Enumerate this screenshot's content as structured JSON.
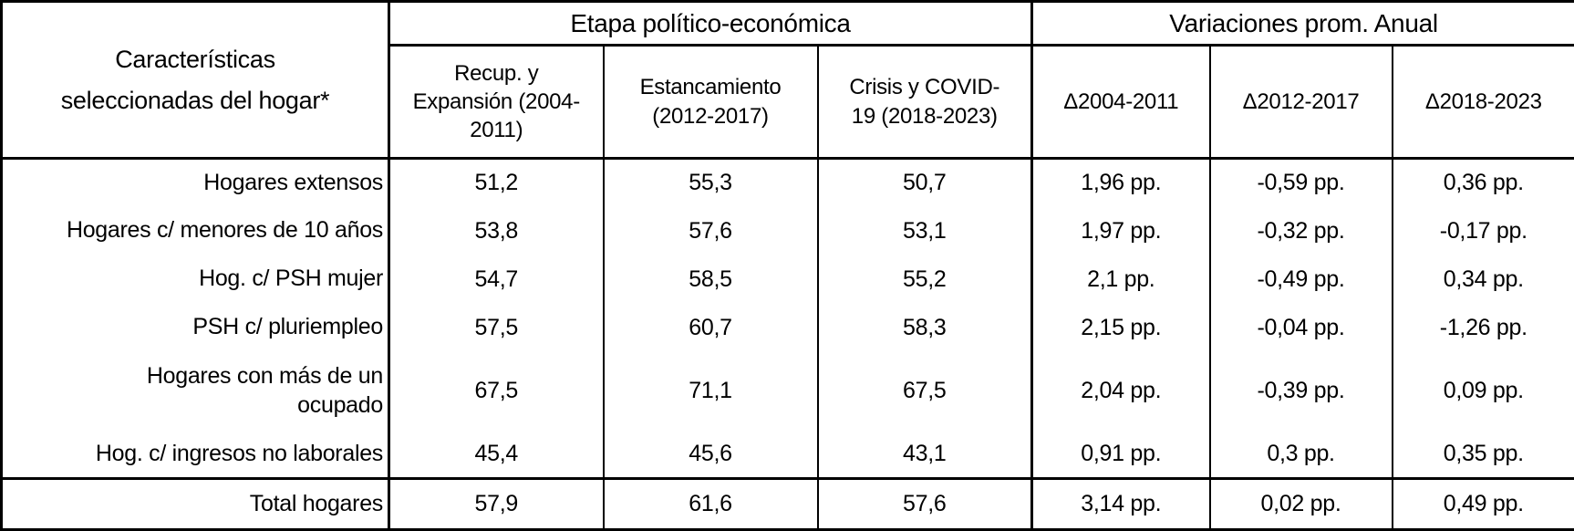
{
  "colors": {
    "background": "#ffffff",
    "text": "#000000",
    "border": "#000000"
  },
  "table": {
    "corner_header": "Características\nseleccionadas del hogar*",
    "groups": [
      {
        "label": "Etapa político-económica",
        "columns": [
          "Recup. y\nExpansión (2004-\n2011)",
          "Estancamiento\n(2012-2017)",
          "Crisis y COVID-\n19 (2018-2023)"
        ]
      },
      {
        "label": "Variaciones prom. Anual",
        "columns": [
          "Δ2004-2011",
          "Δ2012-2017",
          "Δ2018-2023"
        ]
      }
    ],
    "rows": [
      {
        "label": "Hogares extensos",
        "values": [
          "51,2",
          "55,3",
          "50,7",
          "1,96 pp.",
          "-0,59 pp.",
          "0,36 pp."
        ]
      },
      {
        "label": "Hogares c/ menores de 10 años",
        "values": [
          "53,8",
          "57,6",
          "53,1",
          "1,97 pp.",
          "-0,32 pp.",
          "-0,17 pp."
        ]
      },
      {
        "label": "Hog. c/ PSH mujer",
        "values": [
          "54,7",
          "58,5",
          "55,2",
          "2,1 pp.",
          "-0,49 pp.",
          "0,34 pp."
        ]
      },
      {
        "label": "PSH c/ pluriempleo",
        "values": [
          "57,5",
          "60,7",
          "58,3",
          "2,15 pp.",
          "-0,04 pp.",
          "-1,26 pp."
        ]
      },
      {
        "label": "Hogares con más de un\nocupado",
        "values": [
          "67,5",
          "71,1",
          "67,5",
          "2,04 pp.",
          "-0,39 pp.",
          "0,09 pp."
        ]
      },
      {
        "label": "Hog. c/ ingresos no laborales",
        "values": [
          "45,4",
          "45,6",
          "43,1",
          "0,91 pp.",
          "0,3 pp.",
          "0,35 pp."
        ]
      }
    ],
    "total_row": {
      "label": "Total hogares",
      "values": [
        "57,9",
        "61,6",
        "57,6",
        "3,14 pp.",
        "0,02 pp.",
        "0,49 pp."
      ]
    }
  },
  "chart_data": {
    "type": "table",
    "title": "",
    "corner_header": "Características seleccionadas del hogar*",
    "column_groups": [
      {
        "label": "Etapa político-económica",
        "columns": [
          "Recup. y Expansión (2004-2011)",
          "Estancamiento (2012-2017)",
          "Crisis y COVID-19 (2018-2023)"
        ]
      },
      {
        "label": "Variaciones prom. Anual",
        "columns": [
          "Δ2004-2011",
          "Δ2012-2017",
          "Δ2018-2023"
        ]
      }
    ],
    "units": {
      "etapa": "percent",
      "variaciones": "pp."
    },
    "rows": [
      {
        "label": "Hogares extensos",
        "etapa": [
          51.2,
          55.3,
          50.7
        ],
        "variaciones_pp": [
          1.96,
          -0.59,
          0.36
        ]
      },
      {
        "label": "Hogares c/ menores de 10 años",
        "etapa": [
          53.8,
          57.6,
          53.1
        ],
        "variaciones_pp": [
          1.97,
          -0.32,
          -0.17
        ]
      },
      {
        "label": "Hog. c/ PSH mujer",
        "etapa": [
          54.7,
          58.5,
          55.2
        ],
        "variaciones_pp": [
          2.1,
          -0.49,
          0.34
        ]
      },
      {
        "label": "PSH c/ pluriempleo",
        "etapa": [
          57.5,
          60.7,
          58.3
        ],
        "variaciones_pp": [
          2.15,
          -0.04,
          -1.26
        ]
      },
      {
        "label": "Hogares con más de un ocupado",
        "etapa": [
          67.5,
          71.1,
          67.5
        ],
        "variaciones_pp": [
          2.04,
          -0.39,
          0.09
        ]
      },
      {
        "label": "Hog. c/ ingresos no laborales",
        "etapa": [
          45.4,
          45.6,
          43.1
        ],
        "variaciones_pp": [
          0.91,
          0.3,
          0.35
        ]
      },
      {
        "label": "Total hogares",
        "etapa": [
          57.9,
          61.6,
          57.6
        ],
        "variaciones_pp": [
          3.14,
          0.02,
          0.49
        ]
      }
    ]
  }
}
